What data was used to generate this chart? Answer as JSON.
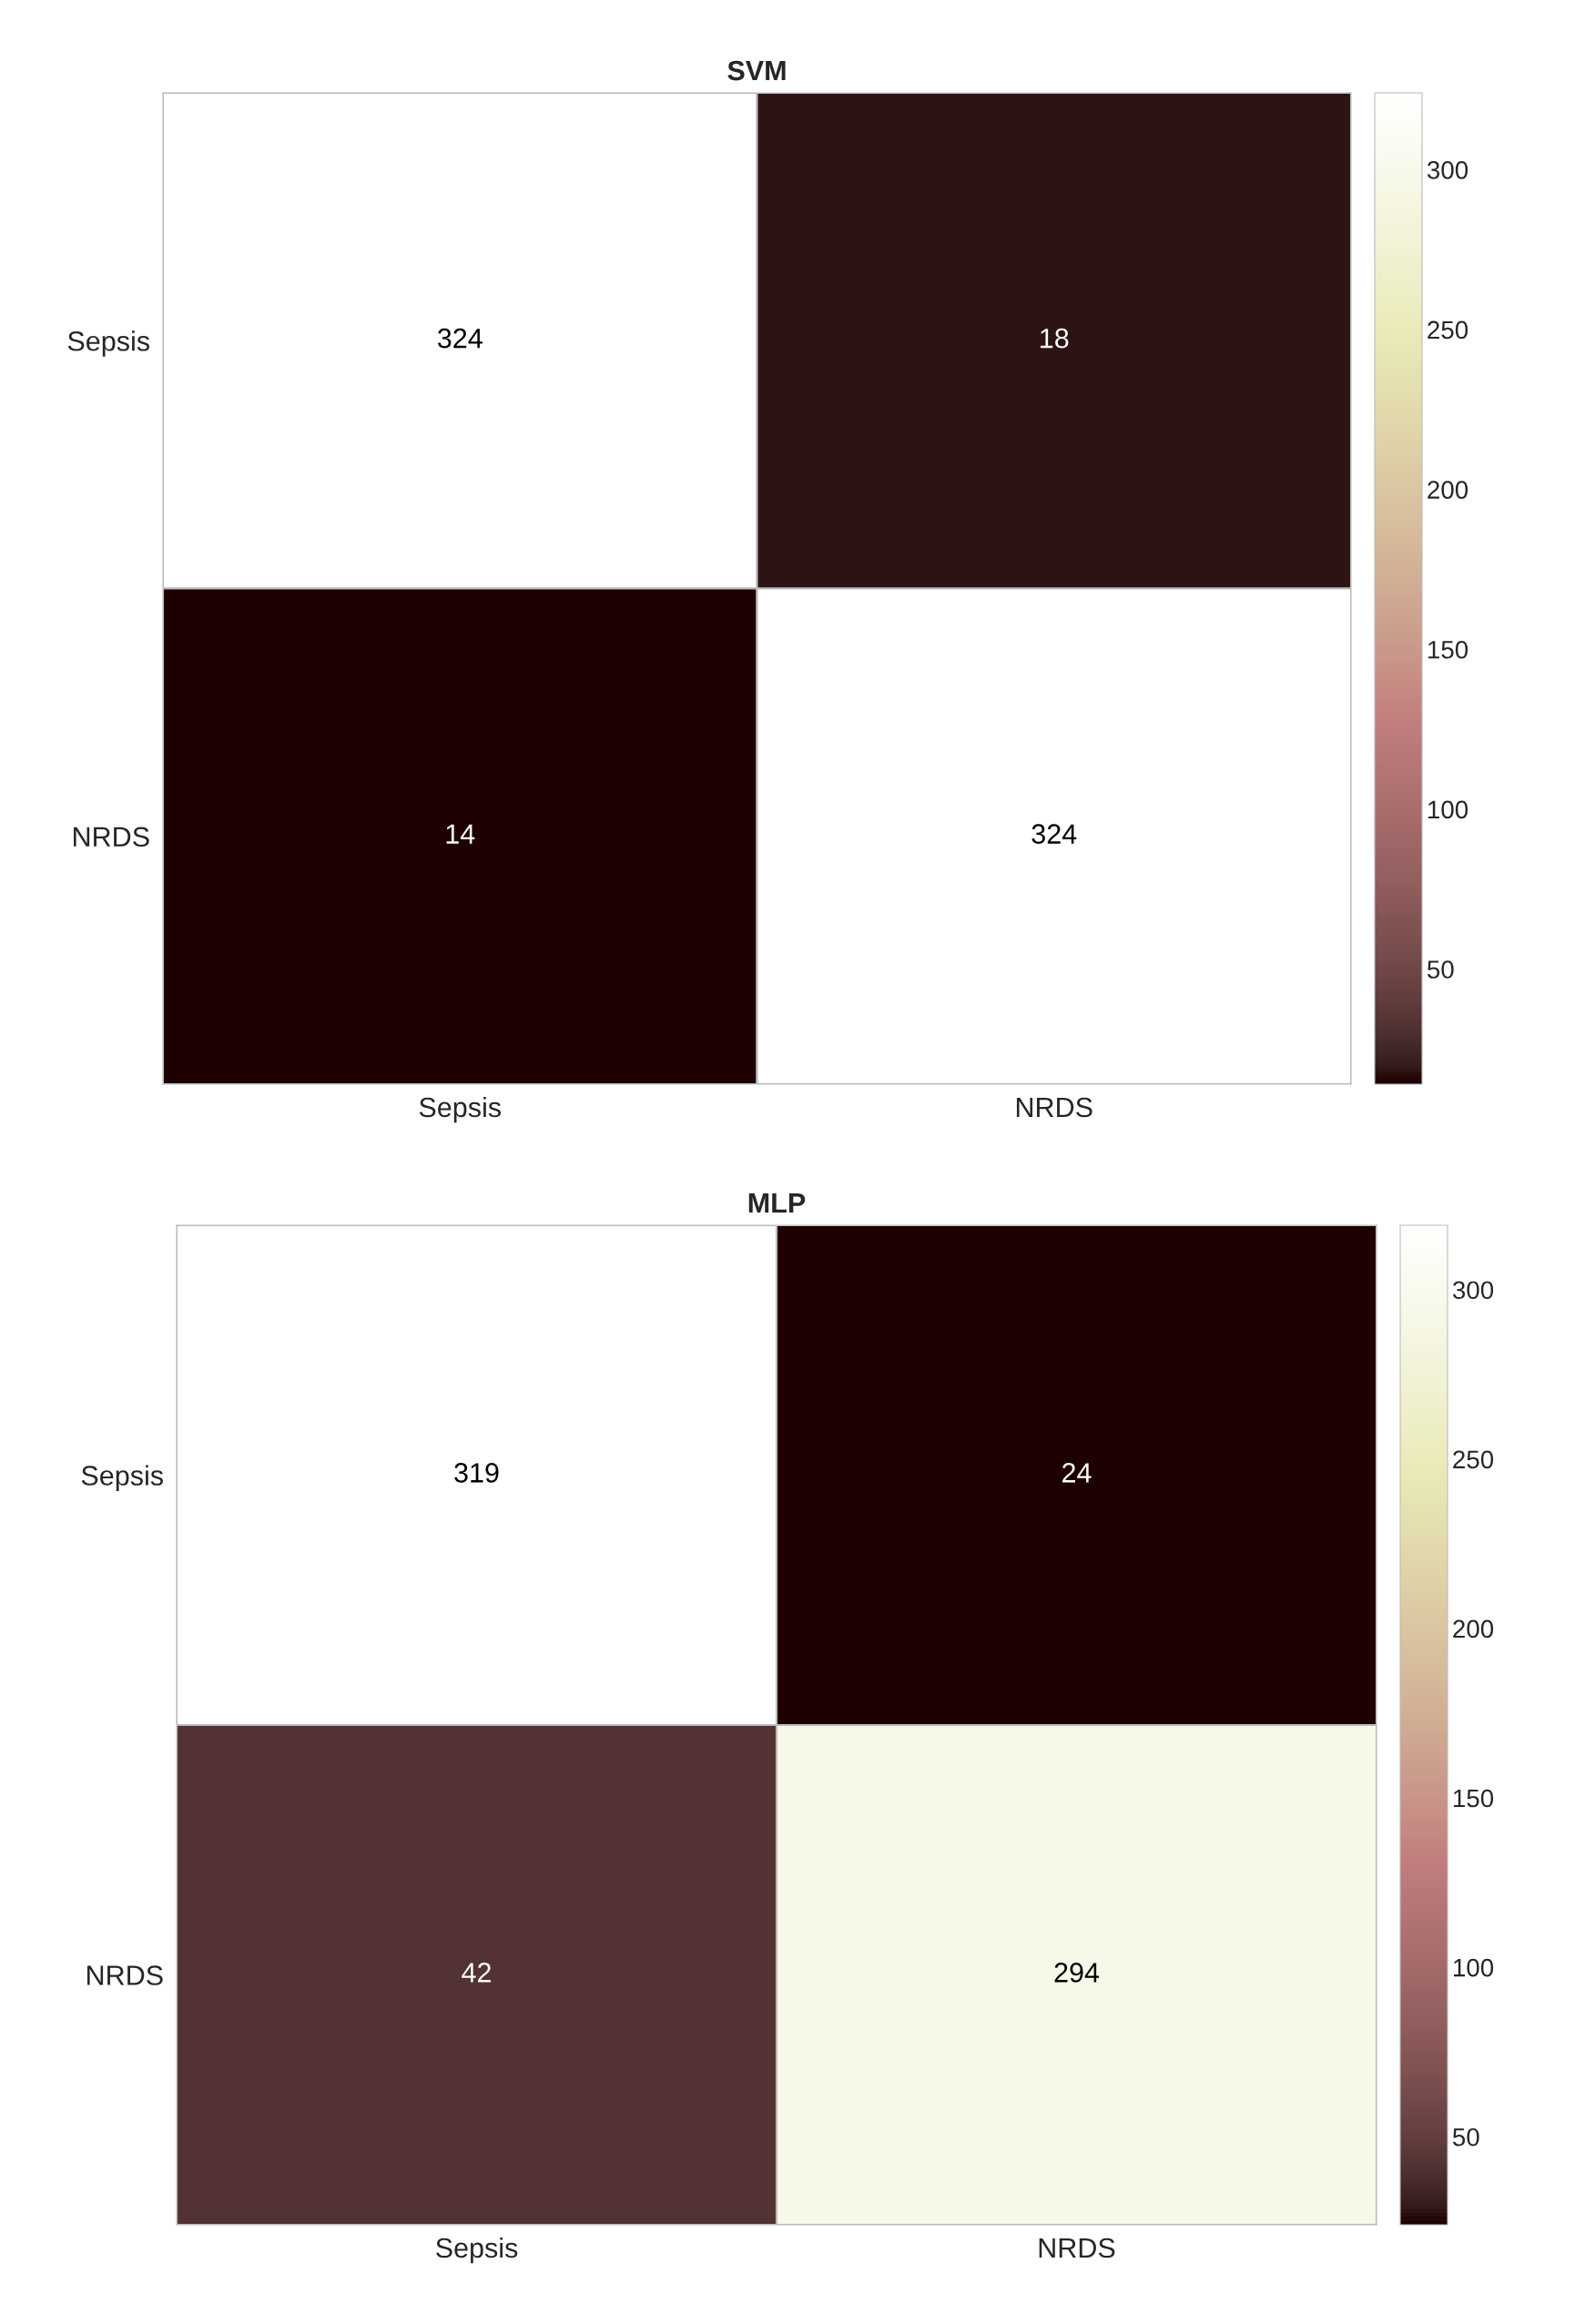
{
  "chart_data": [
    {
      "type": "heatmap",
      "title": "SVM",
      "categories": [
        "Sepsis",
        "NRDS"
      ],
      "y_categories": [
        "Sepsis",
        "NRDS"
      ],
      "cells": [
        [
          324,
          18
        ],
        [
          14,
          324
        ]
      ],
      "data_labels": true,
      "clim": [
        14,
        324
      ],
      "cticks": [
        50,
        100,
        150,
        200,
        250,
        300
      ]
    },
    {
      "type": "heatmap",
      "title": "MLP",
      "categories": [
        "Sepsis",
        "NRDS"
      ],
      "y_categories": [
        "Sepsis",
        "NRDS"
      ],
      "cells": [
        [
          319,
          24
        ],
        [
          42,
          294
        ]
      ],
      "data_labels": true,
      "clim": [
        24,
        319
      ],
      "cticks": [
        50,
        100,
        150,
        200,
        250,
        300
      ]
    }
  ]
}
